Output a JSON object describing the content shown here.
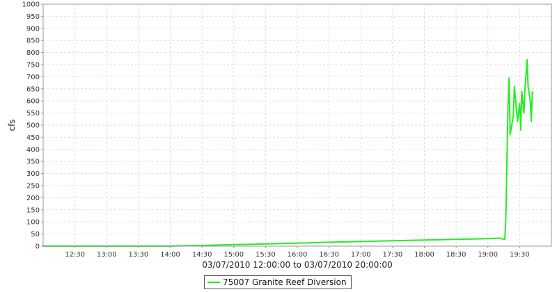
{
  "chart_data": {
    "type": "line",
    "title": "",
    "xlabel": "03/07/2010 12:00:00 to 03/07/2010 20:00:00",
    "ylabel": "cfs",
    "x_range": [
      "12:00",
      "20:00"
    ],
    "ylim": [
      0,
      1000
    ],
    "x_ticks": [
      "12:30",
      "13:00",
      "13:30",
      "14:00",
      "14:30",
      "15:00",
      "15:30",
      "16:00",
      "16:30",
      "17:00",
      "17:30",
      "18:00",
      "18:30",
      "19:00",
      "19:30"
    ],
    "y_ticks": [
      0,
      50,
      100,
      150,
      200,
      250,
      300,
      350,
      400,
      450,
      500,
      550,
      600,
      650,
      700,
      750,
      800,
      850,
      900,
      950,
      1000
    ],
    "grid": true,
    "legend_position": "bottom-center",
    "series": [
      {
        "name": "75007 Granite Reef Diversion",
        "color": "#22ee22",
        "points": [
          [
            "12:00",
            0
          ],
          [
            "14:00",
            0
          ],
          [
            "14:30",
            3
          ],
          [
            "15:00",
            6
          ],
          [
            "15:30",
            9
          ],
          [
            "16:00",
            12
          ],
          [
            "16:30",
            16
          ],
          [
            "17:00",
            19
          ],
          [
            "17:30",
            22
          ],
          [
            "18:00",
            25
          ],
          [
            "18:30",
            28
          ],
          [
            "19:00",
            31
          ],
          [
            "19:10",
            33
          ],
          [
            "19:16",
            28
          ],
          [
            "19:17",
            120
          ],
          [
            "19:18",
            350
          ],
          [
            "19:19",
            580
          ],
          [
            "19:20",
            695
          ],
          [
            "19:21",
            460
          ],
          [
            "19:24",
            540
          ],
          [
            "19:25",
            660
          ],
          [
            "19:28",
            515
          ],
          [
            "19:30",
            590
          ],
          [
            "19:31",
            480
          ],
          [
            "19:32",
            640
          ],
          [
            "19:34",
            550
          ],
          [
            "19:35",
            650
          ],
          [
            "19:37",
            770
          ],
          [
            "19:38",
            660
          ],
          [
            "19:40",
            600
          ],
          [
            "19:41",
            515
          ],
          [
            "19:42",
            640
          ]
        ]
      }
    ]
  }
}
